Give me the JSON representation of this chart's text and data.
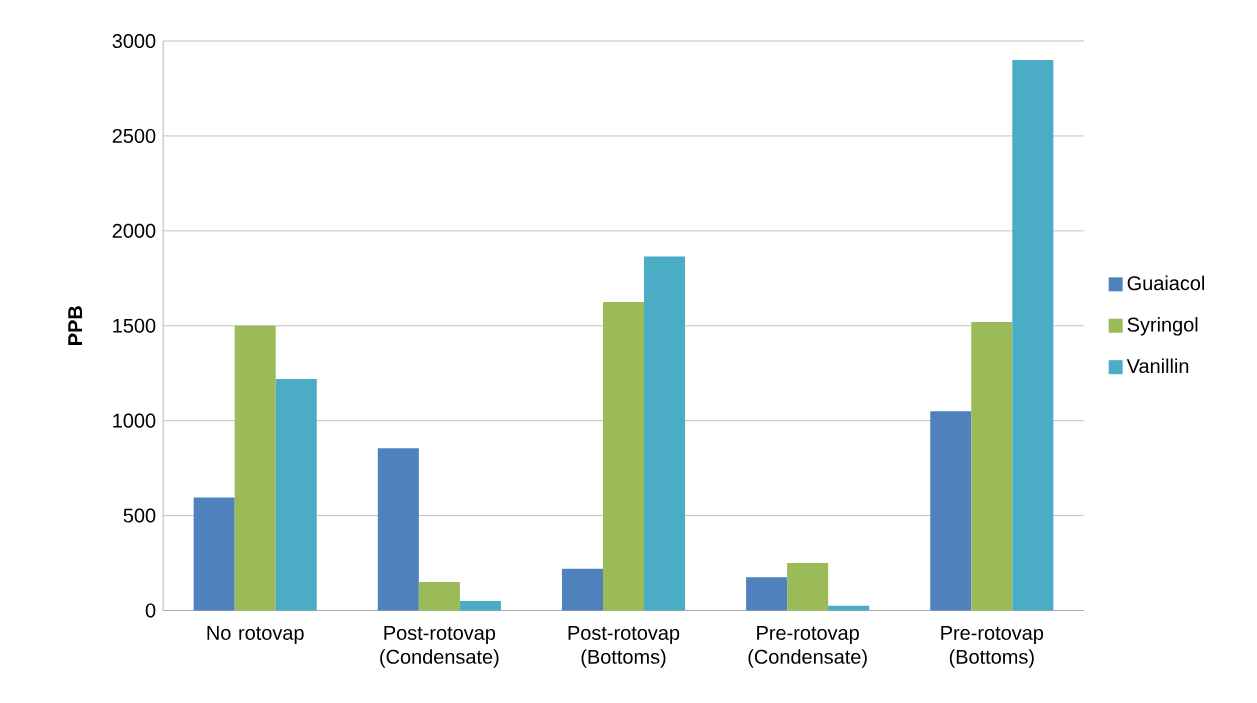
{
  "chart_data": {
    "type": "bar",
    "ylabel": "**PPB**",
    "categories": [
      "No rotovap",
      "Post-rotovap (Condensate)",
      "Post-rotovap (Bottoms)",
      "Pre-rotovap (Condensate)",
      "Pre-rotovap (Bottoms)"
    ],
    "series": [
      {
        "name": "Guaiacol",
        "color": "#4f81bd",
        "values": [
          595,
          855,
          220,
          175,
          1050
        ]
      },
      {
        "name": "Syringol",
        "color": "#9bbb59",
        "values": [
          1500,
          150,
          1625,
          250,
          1520
        ]
      },
      {
        "name": "Vanillin",
        "color": "#4bacc6",
        "values": [
          1220,
          50,
          1865,
          25,
          2900
        ]
      }
    ],
    "ylim": [
      0,
      3000
    ],
    "yticks": [
      0,
      500,
      1000,
      1500,
      2000,
      2500,
      3000
    ],
    "grid": "y",
    "legend": "right"
  }
}
